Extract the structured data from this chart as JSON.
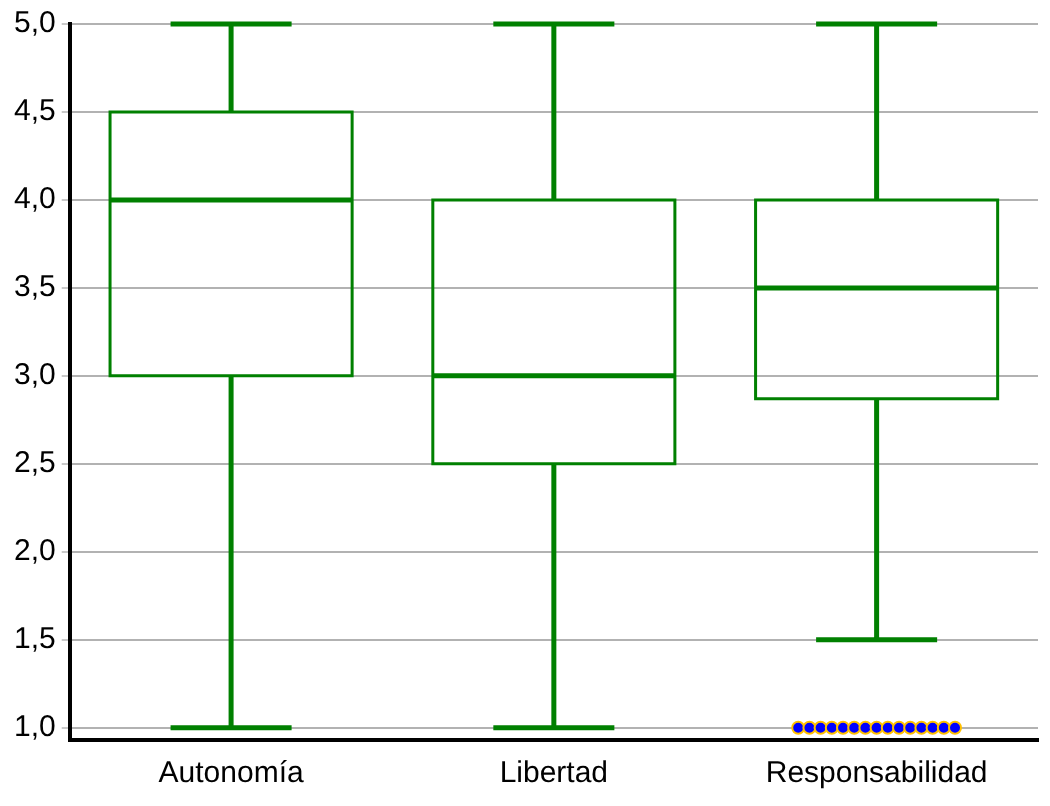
{
  "chart_data": {
    "type": "box",
    "categories": [
      "Autonomía",
      "Libertad",
      "Responsabilidad"
    ],
    "series": [
      {
        "color": "#008000",
        "boxes": [
          {
            "low": 1,
            "q1": 3,
            "median": 4,
            "q3": 4.5,
            "high": 5
          },
          {
            "low": 1,
            "q1": 2.5,
            "median": 3,
            "q3": 4,
            "high": 5
          },
          {
            "low": 1.5,
            "q1": 2.87,
            "median": 3.5,
            "q3": 4,
            "high": 5,
            "outliers": [
              1,
              1,
              1,
              1,
              1,
              1,
              1,
              1,
              1,
              1,
              1,
              1,
              1,
              1,
              1
            ]
          }
        ]
      }
    ],
    "ylim": [
      0.93,
      5
    ],
    "yticks": [
      {
        "value": 1,
        "label": "1,0"
      },
      {
        "value": 1.5,
        "label": "1,5"
      },
      {
        "value": 2,
        "label": "2,0"
      },
      {
        "value": 2.5,
        "label": "2,5"
      },
      {
        "value": 3,
        "label": "3,0"
      },
      {
        "value": 3.5,
        "label": "3,5"
      },
      {
        "value": 4,
        "label": "4,0"
      },
      {
        "value": 4.5,
        "label": "4,5"
      },
      {
        "value": 5,
        "label": "5,0"
      }
    ],
    "grid": "y",
    "legend": false
  }
}
